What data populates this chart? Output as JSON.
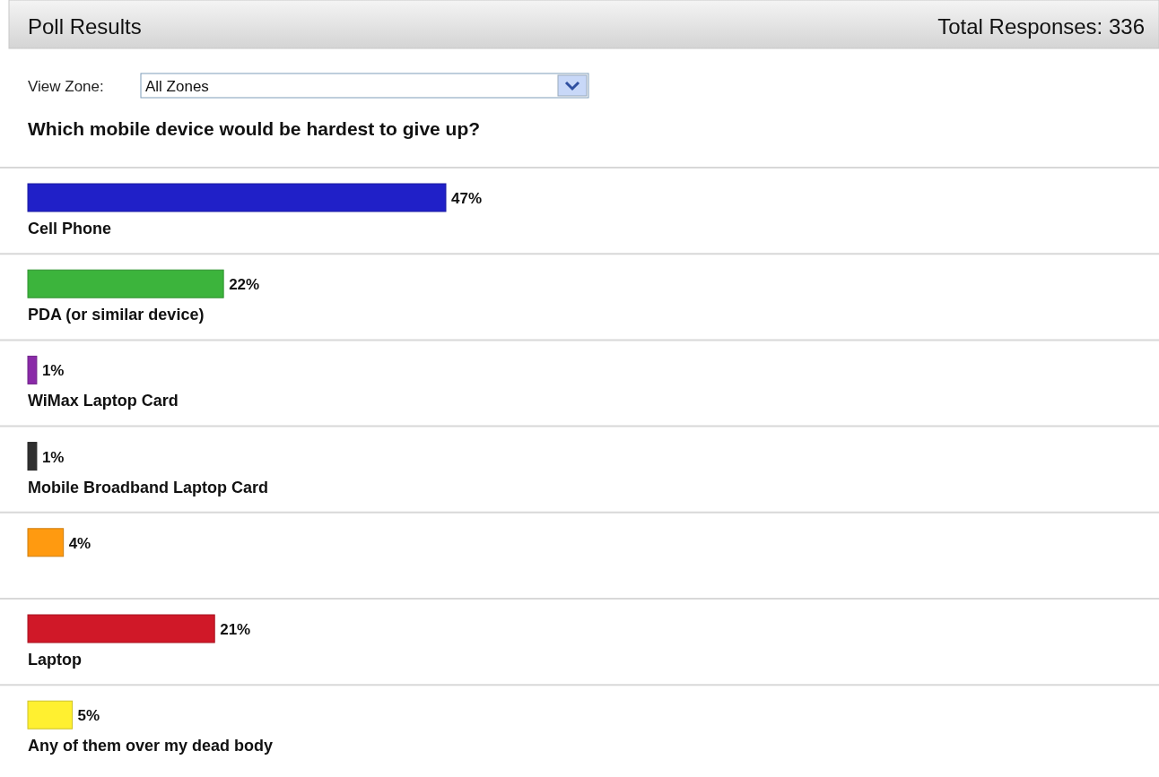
{
  "chart_data": {
    "type": "bar",
    "orientation": "horizontal",
    "title": "Poll Results",
    "subtitle": "Which mobile device would be hardest to give up?",
    "annotations": [
      "Total Responses: 336",
      "View Zone:",
      "All Zones"
    ],
    "categories": [
      "Cell Phone",
      "PDA (or similar device)",
      "WiMax Laptop Card",
      "Mobile Broadband Laptop Card",
      null,
      "Laptop",
      "Any of them over my dead body"
    ],
    "values": [
      47,
      22,
      1,
      1,
      4,
      21,
      5
    ],
    "value_labels": [
      "47%",
      "22%",
      "1%",
      "1%",
      "4%",
      "21%",
      "5%"
    ],
    "colors": [
      "#2020c8",
      "#3cb43c",
      "#8a2aa8",
      "#303030",
      "#ff9a10",
      "#d01828",
      "#fff030"
    ]
  }
}
